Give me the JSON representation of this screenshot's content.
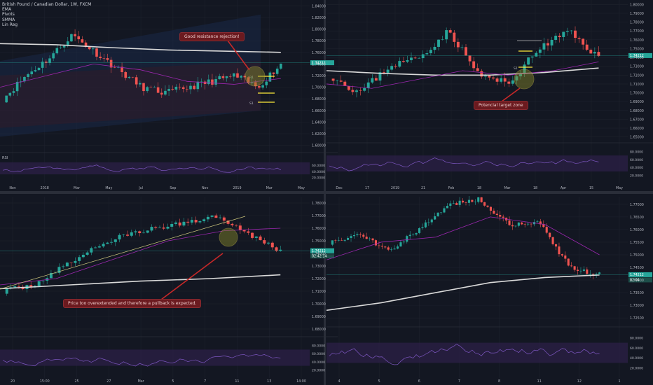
{
  "header": {
    "title": "British Pound / Canadian Dollar, 1W, FXCM",
    "indicators": [
      "EMA",
      "Pivots",
      "SMMA",
      "Lin Reg"
    ]
  },
  "colors": {
    "background": "#131722",
    "grid": "#1e222d",
    "up": "#26a69a",
    "down": "#ef5350",
    "ma_white": "#d9d9d9",
    "ma_purple": "#9c27b0",
    "rsi": "#7e57c2",
    "rsi_band": "#2a1f45",
    "pivot_yellow": "#ffeb3b",
    "price_tag": "#26a69a",
    "callout_bg": "#6b1a1f",
    "callout_arrow": "#c62828",
    "circle_fill": "#8a8a2a"
  },
  "annotations": {
    "tl_callout": "Good resistance rejection!",
    "tr_callout": "Potencial target zone",
    "bl_callout": "Price too overextended and therefore a pullback is expected."
  },
  "chart_data": [
    {
      "panel": "top-left",
      "type": "candlestick",
      "timeframe": "1W",
      "x_ticks": [
        "Nov",
        "2018",
        "Mar",
        "May",
        "Jul",
        "Sep",
        "Nov",
        "2019",
        "Mar",
        "May"
      ],
      "y_ticks": [
        "1.84000",
        "1.82000",
        "1.80000",
        "1.78000",
        "1.76000",
        "1.74000",
        "1.72000",
        "1.70000",
        "1.68000",
        "1.66000",
        "1.64000",
        "1.62000",
        "1.60000"
      ],
      "ylim": [
        1.59,
        1.85
      ],
      "price_tag": "1.74212",
      "pivot_labels": [
        "R1",
        "S1"
      ],
      "rsi": {
        "label": "RSI",
        "ticks": [
          "60.0000",
          "40.0000",
          "20.0000"
        ],
        "band": [
          30,
          70
        ]
      }
    },
    {
      "panel": "top-right",
      "type": "candlestick",
      "x_ticks": [
        "Dec",
        "17",
        "2019",
        "21",
        "Feb",
        "18",
        "Mar",
        "18",
        "Apr",
        "15",
        "May"
      ],
      "y_ticks": [
        "1.80000",
        "1.79000",
        "1.78000",
        "1.77000",
        "1.76000",
        "1.75000",
        "1.74000",
        "1.73000",
        "1.72000",
        "1.71000",
        "1.70000",
        "1.69000",
        "1.68000",
        "1.67000",
        "1.66000",
        "1.65000"
      ],
      "ylim": [
        1.645,
        1.805
      ],
      "price_tag": "1.74212",
      "pivot_labels": [
        "S1"
      ],
      "rsi": {
        "ticks": [
          "80.0000",
          "60.0000",
          "40.0000",
          "20.0000"
        ]
      }
    },
    {
      "panel": "bottom-left",
      "type": "candlestick",
      "x_ticks": [
        "20",
        "15:00",
        "25",
        "27",
        "Mar",
        "5",
        "7",
        "11",
        "13",
        "14:00"
      ],
      "y_ticks": [
        "1.78000",
        "1.77000",
        "1.76000",
        "1.75000",
        "1.74000",
        "1.73000",
        "1.72000",
        "1.71000",
        "1.70000",
        "1.69000",
        "1.68000"
      ],
      "ylim": [
        1.675,
        1.785
      ],
      "price_tag": "1.74212",
      "countdown": "02:42:14",
      "rsi": {
        "ticks": [
          "80.0000",
          "60.0000",
          "40.0000",
          "20.0000"
        ]
      }
    },
    {
      "panel": "bottom-right",
      "type": "candlestick",
      "x_ticks": [
        "4",
        "5",
        "6",
        "7",
        "8",
        "11",
        "12",
        "1"
      ],
      "y_ticks": [
        "1.77000",
        "1.76500",
        "1.76000",
        "1.75500",
        "1.75000",
        "1.74500",
        "1.74000",
        "1.73500",
        "1.73000",
        "1.72500"
      ],
      "ylim": [
        1.722,
        1.773
      ],
      "price_tag": "1.74212",
      "countdown": "02:04",
      "rsi": {
        "ticks": [
          "80.0000",
          "60.0000",
          "40.0000",
          "20.0000"
        ]
      }
    }
  ]
}
